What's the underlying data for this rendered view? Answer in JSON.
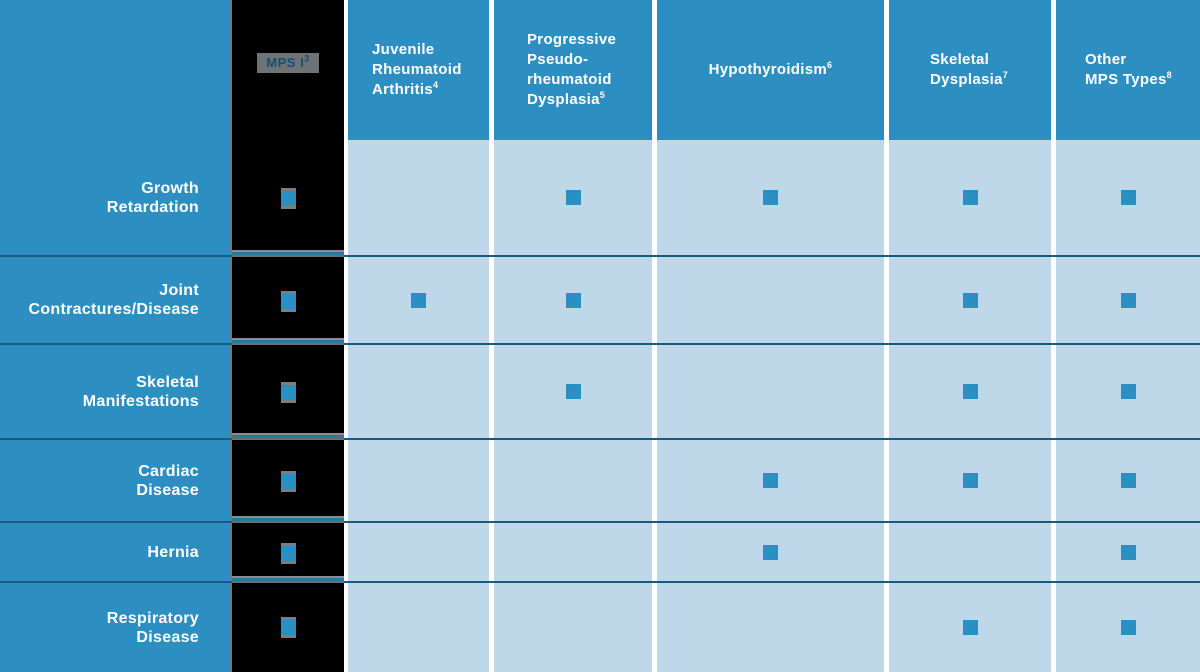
{
  "colors": {
    "brand_blue": "#2d8fc1",
    "light_cell_blue": "#bfd8e9",
    "check_square_blue": "#2b8fc1",
    "row_rule_navy": "#1a5a7d",
    "redaction_black": "#000000",
    "divider_gray": "#767676",
    "chip_gray": "#6e7376",
    "chip_text_blue": "#194f6d",
    "header_text": "#ffffff"
  },
  "table": {
    "check_symbol": "filled-square",
    "brand_column": {
      "label": "MPS I",
      "superscript": "3"
    },
    "columns": [
      {
        "id": "jra",
        "lines": [
          "Juvenile",
          "Rheumatoid",
          "Arthritis"
        ],
        "superscript": "4"
      },
      {
        "id": "ppd",
        "lines": [
          "Progressive",
          "Pseudo-",
          "rheumatoid",
          "Dysplasia"
        ],
        "superscript": "5"
      },
      {
        "id": "hypothyroidism",
        "lines": [
          "Hypothyroidism"
        ],
        "superscript": "6"
      },
      {
        "id": "skeletal_dysplasia",
        "lines": [
          "Skeletal",
          "Dysplasia"
        ],
        "superscript": "7"
      },
      {
        "id": "other_mps",
        "lines": [
          "Other",
          "MPS Types"
        ],
        "superscript": "8"
      }
    ],
    "rows": [
      {
        "id": "growth_retardation",
        "label_lines": [
          "Growth",
          "Retardation"
        ],
        "checks": {
          "mps_i": true,
          "jra": false,
          "ppd": true,
          "hypothyroidism": true,
          "skeletal_dysplasia": true,
          "other_mps": true
        }
      },
      {
        "id": "joint_contractures_disease",
        "label_lines": [
          "Joint",
          "Contractures/Disease"
        ],
        "checks": {
          "mps_i": true,
          "jra": true,
          "ppd": true,
          "hypothyroidism": false,
          "skeletal_dysplasia": true,
          "other_mps": true
        }
      },
      {
        "id": "skeletal_manifestations",
        "label_lines": [
          "Skeletal",
          "Manifestations"
        ],
        "checks": {
          "mps_i": true,
          "jra": false,
          "ppd": true,
          "hypothyroidism": false,
          "skeletal_dysplasia": true,
          "other_mps": true
        }
      },
      {
        "id": "cardiac_disease",
        "label_lines": [
          "Cardiac",
          "Disease"
        ],
        "checks": {
          "mps_i": true,
          "jra": false,
          "ppd": false,
          "hypothyroidism": true,
          "skeletal_dysplasia": true,
          "other_mps": true
        }
      },
      {
        "id": "hernia",
        "label_lines": [
          "Hernia"
        ],
        "checks": {
          "mps_i": true,
          "jra": false,
          "ppd": false,
          "hypothyroidism": true,
          "skeletal_dysplasia": false,
          "other_mps": true
        }
      },
      {
        "id": "respiratory_disease",
        "label_lines": [
          "Respiratory",
          "Disease"
        ],
        "checks": {
          "mps_i": true,
          "jra": false,
          "ppd": false,
          "hypothyroidism": false,
          "skeletal_dysplasia": true,
          "other_mps": true
        }
      }
    ]
  },
  "chart_data": {
    "type": "table",
    "columns": [
      "MPS I³",
      "Juvenile Rheumatoid Arthritis⁴",
      "Progressive Pseudo-rheumatoid Dysplasia⁵",
      "Hypothyroidism⁶",
      "Skeletal Dysplasia⁷",
      "Other MPS Types⁸"
    ],
    "rows": [
      "Growth Retardation",
      "Joint Contractures/Disease",
      "Skeletal Manifestations",
      "Cardiac Disease",
      "Hernia",
      "Respiratory Disease"
    ],
    "values": [
      [
        1,
        0,
        1,
        1,
        1,
        1
      ],
      [
        1,
        1,
        1,
        0,
        1,
        1
      ],
      [
        1,
        0,
        1,
        0,
        1,
        1
      ],
      [
        1,
        0,
        0,
        1,
        1,
        1
      ],
      [
        1,
        0,
        0,
        1,
        0,
        1
      ],
      [
        1,
        0,
        0,
        0,
        1,
        1
      ]
    ],
    "cell_symbol": "filled-square",
    "layout_hints": {
      "grid": "white gaps between condition columns, navy row rules",
      "legend": "none shown"
    }
  }
}
